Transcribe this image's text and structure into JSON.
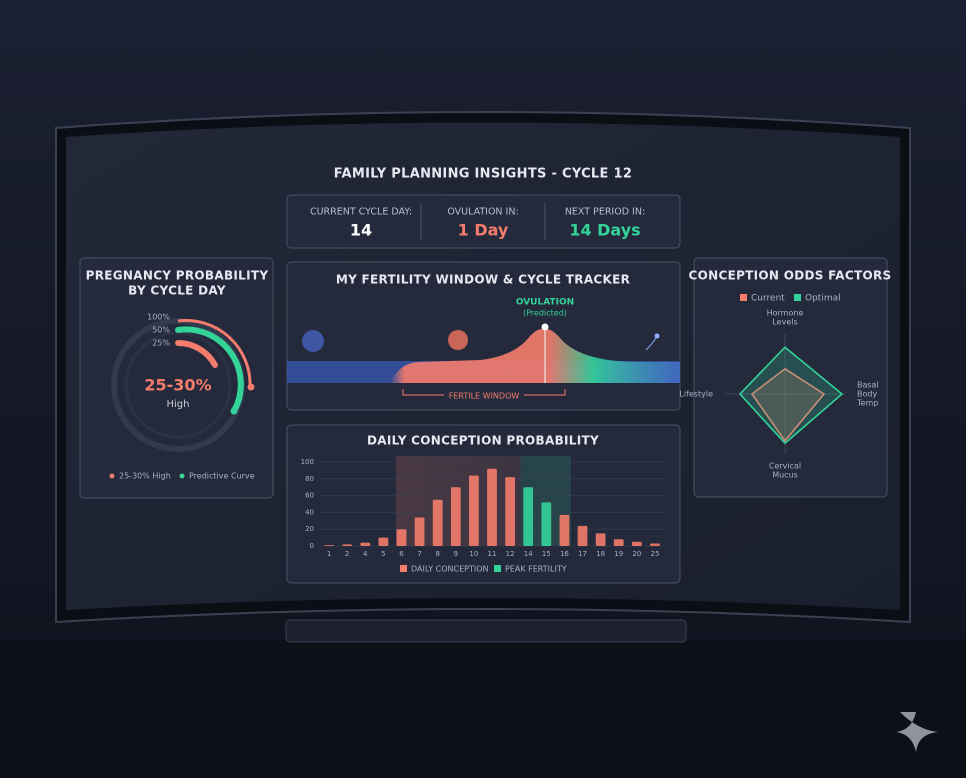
{
  "header": {
    "title": "FAMILY PLANNING INSIGHTS - CYCLE 12"
  },
  "stats": [
    {
      "label": "CURRENT CYCLE DAY:",
      "value": "14"
    },
    {
      "label": "OVULATION IN:",
      "value": "1 Day"
    },
    {
      "label": "NEXT PERIOD IN:",
      "value": "14 Days"
    }
  ],
  "gauge": {
    "title": [
      "PREGNANCY PROBABILITY",
      "BY CYCLE DAY"
    ],
    "rings": [
      "100%",
      "50%",
      "25%"
    ],
    "value": "25-30%",
    "level": "High",
    "legend": [
      "25-30% High",
      "Predictive Curve"
    ]
  },
  "tracker": {
    "title": "MY FERTILITY WINDOW & CYCLE TRACKER",
    "marker": "OVULATION",
    "marker_note": "(Predicted)",
    "window": "FERTILE WINDOW"
  },
  "chart_data": [
    {
      "type": "bar",
      "title": "DAILY CONCEPTION PROBABILITY",
      "categories": [
        "1",
        "2",
        "4",
        "5",
        "6",
        "7",
        "8",
        "9",
        "10",
        "11",
        "12",
        "14",
        "15",
        "16",
        "17",
        "18",
        "19",
        "20",
        "25"
      ],
      "series": [
        {
          "name": "DAILY CONCEPTION",
          "color": "#f47c6c",
          "values": [
            1,
            2,
            4,
            10,
            20,
            34,
            55,
            70,
            84,
            92,
            82,
            null,
            null,
            37,
            24,
            15,
            8,
            5,
            3
          ]
        },
        {
          "name": "PEAK FERTILITY",
          "color": "#34d399",
          "values": [
            null,
            null,
            null,
            null,
            null,
            null,
            null,
            null,
            null,
            null,
            null,
            70,
            52,
            null,
            null,
            null,
            null,
            null,
            null
          ]
        }
      ],
      "ylim": [
        0,
        100
      ],
      "yticks": [
        0,
        20,
        40,
        60,
        80,
        100
      ],
      "grid": true
    },
    {
      "type": "radar",
      "title": "CONCEPTION ODDS FACTORS",
      "axes": [
        [
          "Hormone",
          "Levels"
        ],
        [
          "Basal",
          "Body",
          "Temp"
        ],
        [
          "Cervical",
          "Mucus"
        ],
        [
          "Lifestyle"
        ]
      ],
      "series": [
        {
          "name": "Current",
          "color": "#f47c6c",
          "values": [
            42,
            65,
            78,
            55
          ]
        },
        {
          "name": "Optimal",
          "color": "#34d399",
          "values": [
            78,
            95,
            82,
            75
          ]
        }
      ],
      "rlim": [
        0,
        100
      ]
    }
  ]
}
